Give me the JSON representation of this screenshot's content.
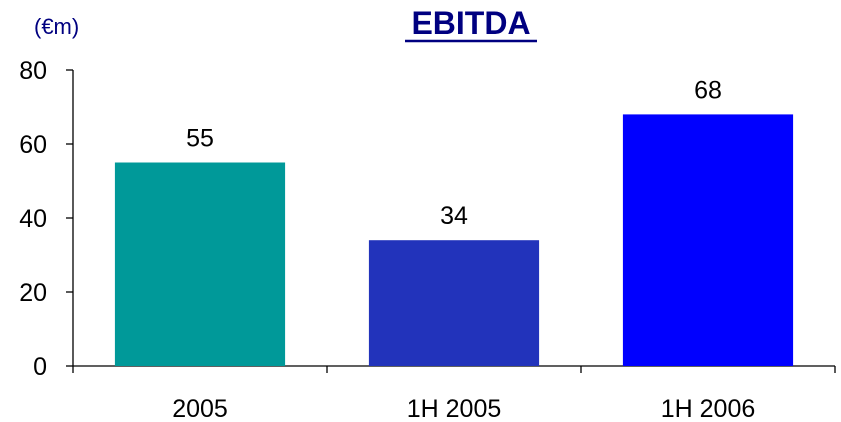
{
  "chart_data": {
    "type": "bar",
    "title": "EBITDA",
    "unit_label": "(€m)",
    "xlabel": "",
    "ylabel": "",
    "categories": [
      "2005",
      "1H 2005",
      "1H 2006"
    ],
    "values": [
      55,
      34,
      68
    ],
    "data_labels": [
      "55",
      "34",
      "68"
    ],
    "ylim": [
      0,
      80
    ],
    "yticks": [
      0,
      20,
      40,
      60,
      80
    ],
    "ytick_labels": [
      "0",
      "20",
      "40",
      "60",
      "80"
    ],
    "bar_colors": [
      "#009999",
      "#2233BB",
      "#0000FF"
    ],
    "grid": false,
    "legend": "none",
    "title_color": "#000080"
  }
}
